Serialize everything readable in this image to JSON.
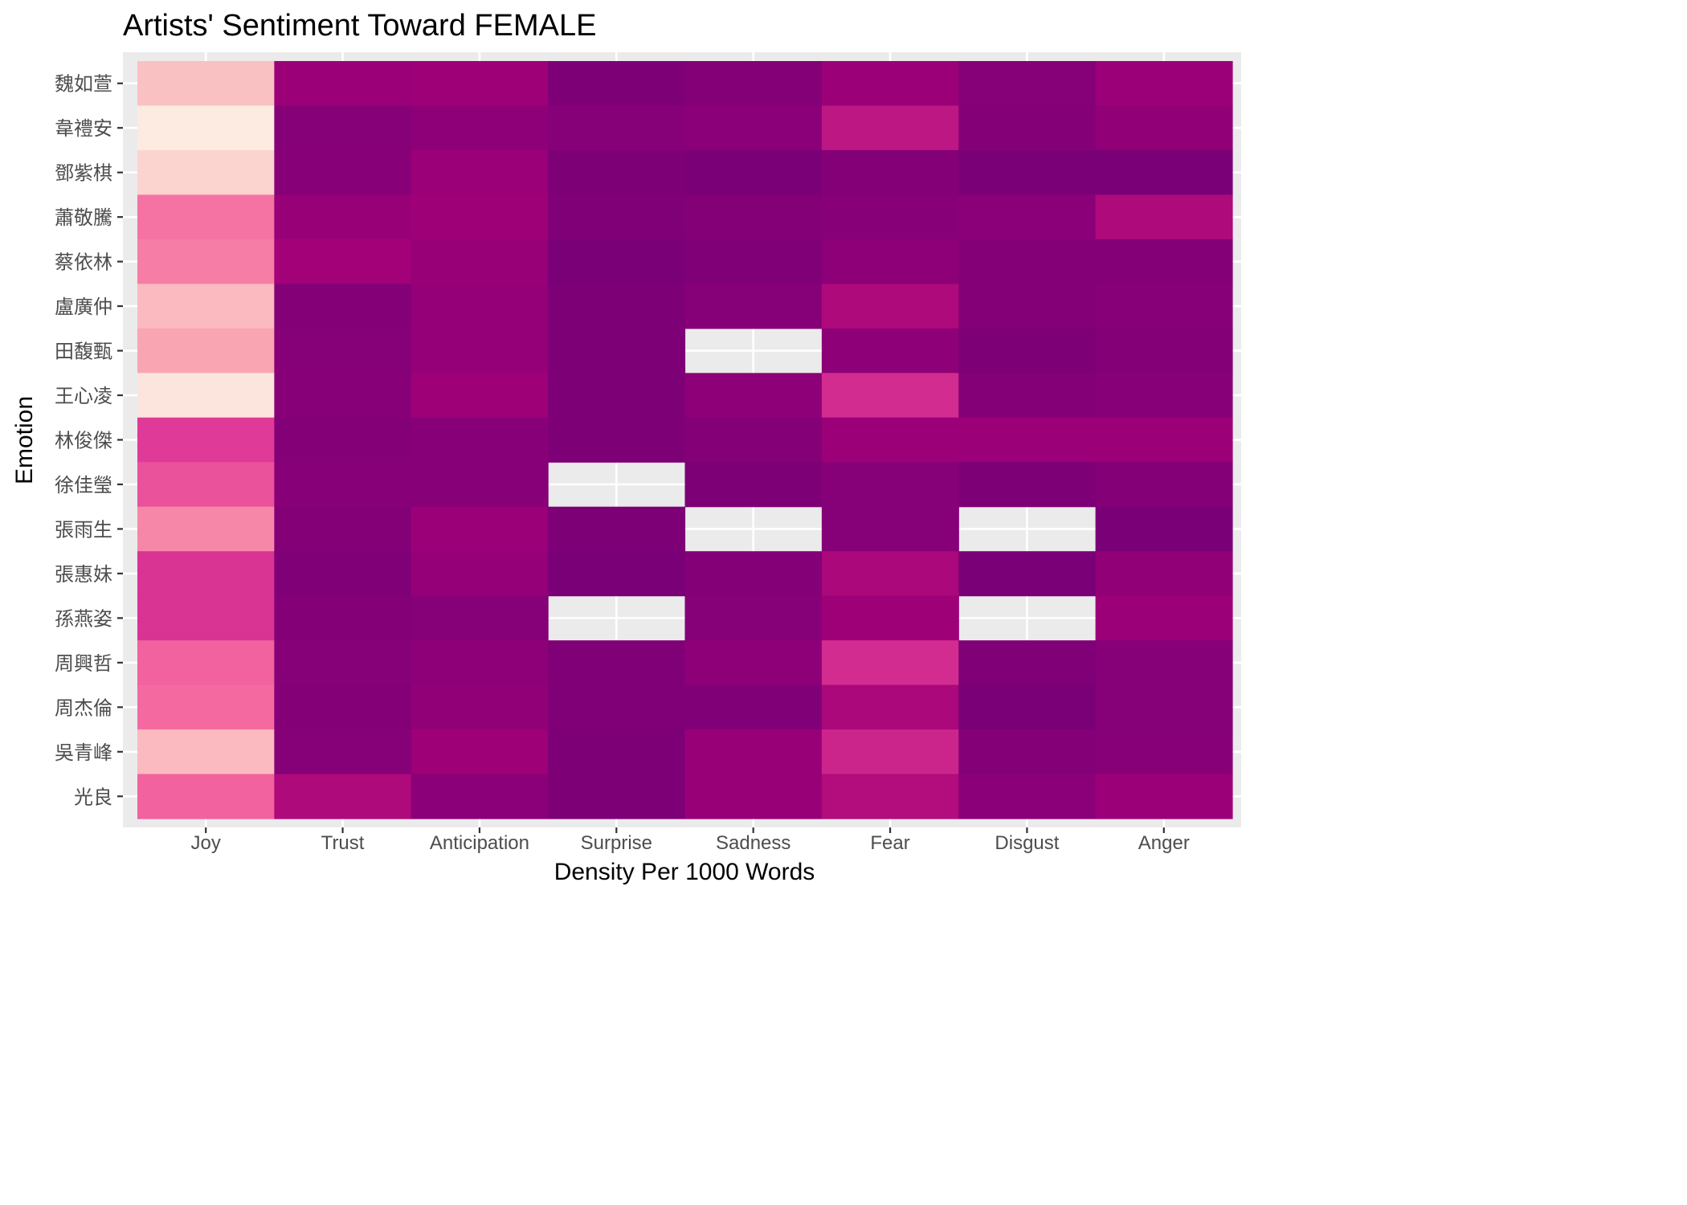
{
  "chart_data": {
    "type": "heatmap",
    "title": "Artists' Sentiment Toward FEMALE",
    "xlabel": "Density Per 1000 Words",
    "ylabel": "Emotion",
    "x_categories": [
      "Joy",
      "Trust",
      "Anticipation",
      "Surprise",
      "Sadness",
      "Fear",
      "Disgust",
      "Anger"
    ],
    "y_categories": [
      "魏如萱",
      "韋禮安",
      "鄧紫棋",
      "蕭敬騰",
      "蔡依林",
      "盧廣仲",
      "田馥甄",
      "王心凌",
      "林俊傑",
      "徐佳瑩",
      "張雨生",
      "張惠妹",
      "孫燕姿",
      "周興哲",
      "周杰倫",
      "吳青峰",
      "光良"
    ],
    "color_scale": [
      "#fdeee4",
      "#fbd3cf",
      "#f9aab4",
      "#f56ca0",
      "#e03a98",
      "#b40e7e",
      "#a00078",
      "#8c0078",
      "#7a0077"
    ],
    "values": [
      [
        0.18,
        0.78,
        0.76,
        0.98,
        0.94,
        0.78,
        0.92,
        0.78
      ],
      [
        0.02,
        0.92,
        0.86,
        0.92,
        0.88,
        0.6,
        0.94,
        0.84
      ],
      [
        0.12,
        0.9,
        0.78,
        0.98,
        1.0,
        0.94,
        1.0,
        1.0
      ],
      [
        0.36,
        0.8,
        0.76,
        0.96,
        0.94,
        0.9,
        0.88,
        0.66
      ],
      [
        0.34,
        0.74,
        0.8,
        1.0,
        0.96,
        0.86,
        0.94,
        0.94
      ],
      [
        0.2,
        0.94,
        0.82,
        0.98,
        0.92,
        0.66,
        0.94,
        0.9
      ],
      [
        0.26,
        0.92,
        0.82,
        0.98,
        null,
        0.86,
        0.98,
        0.94
      ],
      [
        0.04,
        0.9,
        0.76,
        0.98,
        0.86,
        0.54,
        0.94,
        0.9
      ],
      [
        0.5,
        0.94,
        0.9,
        0.98,
        0.94,
        0.78,
        0.78,
        0.78
      ],
      [
        0.44,
        0.9,
        0.9,
        null,
        0.98,
        0.92,
        0.98,
        0.94
      ],
      [
        0.32,
        0.94,
        0.78,
        0.98,
        null,
        0.92,
        null,
        1.0
      ],
      [
        0.52,
        0.96,
        0.82,
        1.0,
        0.94,
        0.68,
        1.0,
        0.84
      ],
      [
        0.52,
        0.94,
        0.92,
        null,
        0.92,
        0.76,
        null,
        0.78
      ],
      [
        0.4,
        0.92,
        0.86,
        0.96,
        0.86,
        0.54,
        0.96,
        0.92
      ],
      [
        0.38,
        0.94,
        0.84,
        0.96,
        0.96,
        0.68,
        1.0,
        0.92
      ],
      [
        0.2,
        0.92,
        0.76,
        0.98,
        0.8,
        0.56,
        0.94,
        0.9
      ],
      [
        0.4,
        0.66,
        0.88,
        0.98,
        0.8,
        0.64,
        0.88,
        0.78
      ]
    ],
    "value_note": "",
    "missing_color": "#ebebeb",
    "panel_background": "#ebebeb",
    "grid": true,
    "legend": "none"
  }
}
